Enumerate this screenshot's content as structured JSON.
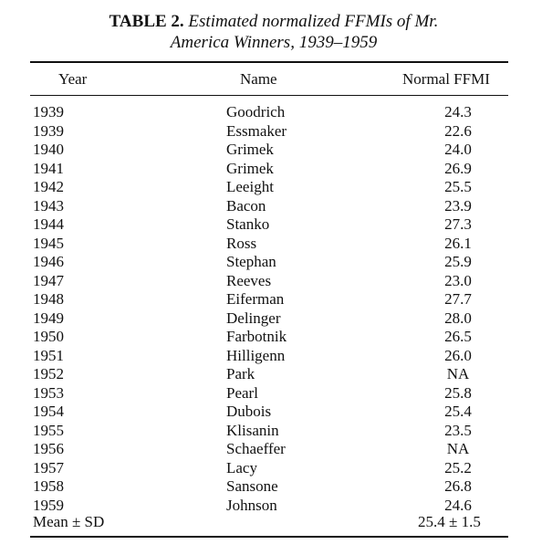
{
  "caption": {
    "label": "TABLE 2.",
    "title_line1": "Estimated normalized FFMIs of Mr.",
    "title_line2": "America Winners, 1939–1959"
  },
  "table": {
    "headers": {
      "year": "Year",
      "name": "Name",
      "ffmi": "Normal FFMI"
    },
    "rows": [
      {
        "year": "1939",
        "name": "Goodrich",
        "ffmi": "24.3"
      },
      {
        "year": "1939",
        "name": "Essmaker",
        "ffmi": "22.6"
      },
      {
        "year": "1940",
        "name": "Grimek",
        "ffmi": "24.0"
      },
      {
        "year": "1941",
        "name": "Grimek",
        "ffmi": "26.9"
      },
      {
        "year": "1942",
        "name": "Leeight",
        "ffmi": "25.5"
      },
      {
        "year": "1943",
        "name": "Bacon",
        "ffmi": "23.9"
      },
      {
        "year": "1944",
        "name": "Stanko",
        "ffmi": "27.3"
      },
      {
        "year": "1945",
        "name": "Ross",
        "ffmi": "26.1"
      },
      {
        "year": "1946",
        "name": "Stephan",
        "ffmi": "25.9"
      },
      {
        "year": "1947",
        "name": "Reeves",
        "ffmi": "23.0"
      },
      {
        "year": "1948",
        "name": "Eiferman",
        "ffmi": "27.7"
      },
      {
        "year": "1949",
        "name": "Delinger",
        "ffmi": "28.0"
      },
      {
        "year": "1950",
        "name": "Farbotnik",
        "ffmi": "26.5"
      },
      {
        "year": "1951",
        "name": "Hilligenn",
        "ffmi": "26.0"
      },
      {
        "year": "1952",
        "name": "Park",
        "ffmi": "NA"
      },
      {
        "year": "1953",
        "name": "Pearl",
        "ffmi": "25.8"
      },
      {
        "year": "1954",
        "name": "Dubois",
        "ffmi": "25.4"
      },
      {
        "year": "1955",
        "name": "Klisanin",
        "ffmi": "23.5"
      },
      {
        "year": "1956",
        "name": "Schaeffer",
        "ffmi": "NA"
      },
      {
        "year": "1957",
        "name": "Lacy",
        "ffmi": "25.2"
      },
      {
        "year": "1958",
        "name": "Sansone",
        "ffmi": "26.8"
      },
      {
        "year": "1959",
        "name": "Johnson",
        "ffmi": "24.6"
      }
    ],
    "summary": {
      "label": "Mean ± SD",
      "value": "25.4 ± 1.5"
    }
  }
}
